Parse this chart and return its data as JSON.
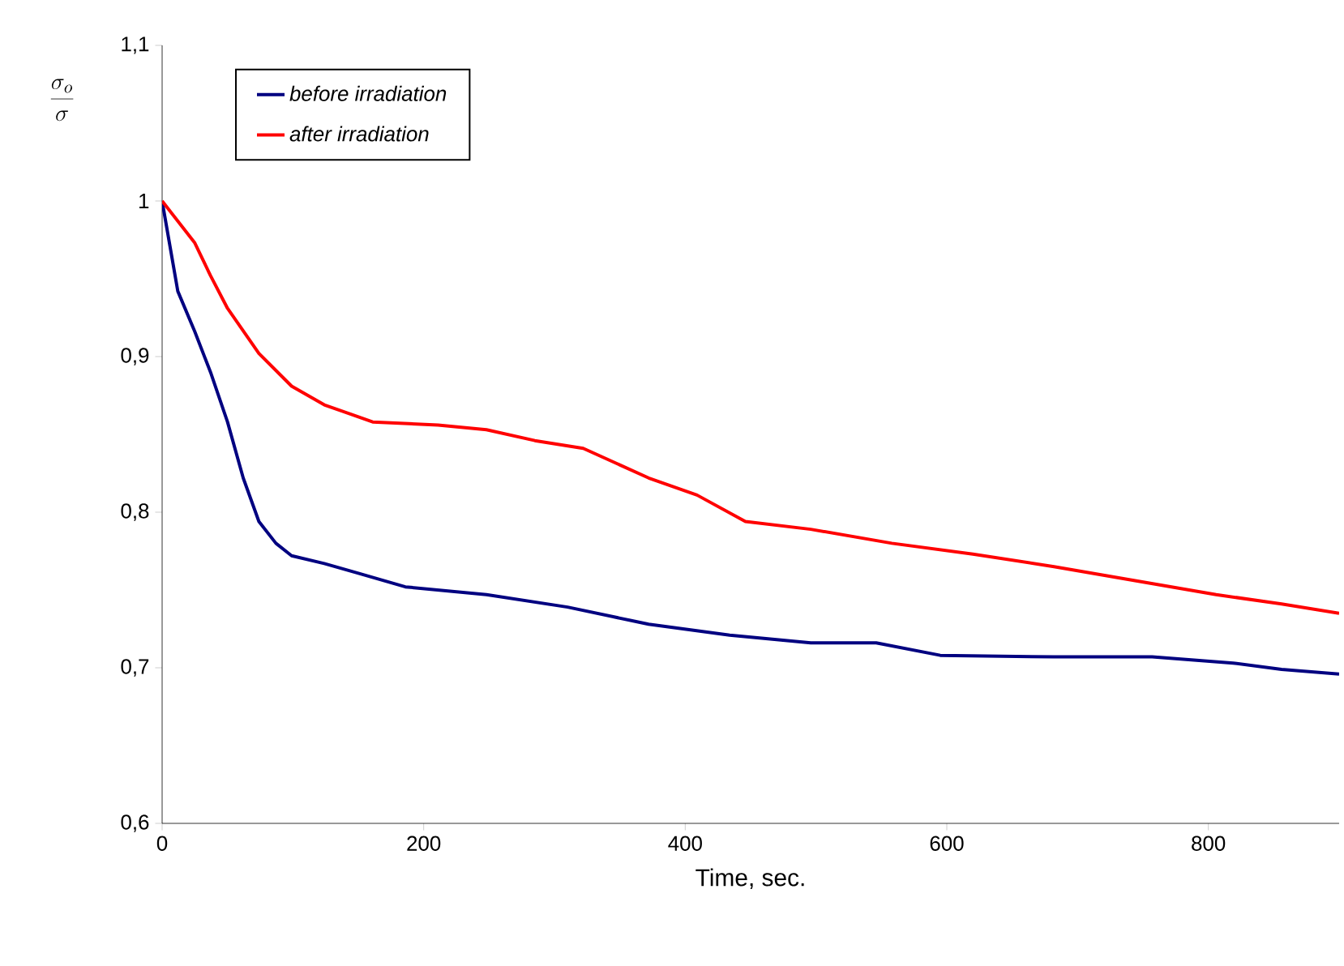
{
  "chart_data": {
    "type": "line",
    "xlabel": "Time, sec.",
    "ylabel": "\\frac{\\sigma_o}{\\sigma}",
    "xlim": [
      0,
      900
    ],
    "xticks": [
      0,
      200,
      400,
      600,
      800
    ],
    "ylim": [
      0.6,
      1.1
    ],
    "yticks": [
      {
        "value": 0.6,
        "label": "0,6"
      },
      {
        "value": 0.7,
        "label": "0,7"
      },
      {
        "value": 0.8,
        "label": "0,8"
      },
      {
        "value": 0.9,
        "label": "0,9"
      },
      {
        "value": 1.0,
        "label": "1"
      },
      {
        "value": 1.1,
        "label": "1,1"
      }
    ],
    "legend": "top left",
    "grid": false,
    "series": [
      {
        "name": "before irradiation",
        "color": "#000080",
        "x": [
          0,
          12,
          25,
          37,
          50,
          62,
          74,
          87,
          99,
          124,
          149,
          186,
          248,
          310,
          372,
          434,
          496,
          546,
          595,
          682,
          757,
          819,
          856,
          900
        ],
        "values": [
          1.0,
          0.942,
          0.916,
          0.89,
          0.858,
          0.822,
          0.794,
          0.78,
          0.772,
          0.767,
          0.761,
          0.752,
          0.747,
          0.739,
          0.728,
          0.721,
          0.716,
          0.716,
          0.708,
          0.707,
          0.707,
          0.703,
          0.699,
          0.696
        ]
      },
      {
        "name": "after irradiation",
        "color": "#ff0000",
        "x": [
          0,
          25,
          37,
          50,
          74,
          99,
          124,
          161,
          211,
          248,
          285,
          322,
          372,
          409,
          446,
          496,
          558,
          620,
          682,
          744,
          806,
          856,
          900
        ],
        "values": [
          1.0,
          0.973,
          0.952,
          0.931,
          0.902,
          0.881,
          0.869,
          0.858,
          0.856,
          0.853,
          0.846,
          0.841,
          0.822,
          0.811,
          0.794,
          0.789,
          0.78,
          0.773,
          0.765,
          0.756,
          0.747,
          0.741,
          0.735
        ]
      }
    ]
  }
}
